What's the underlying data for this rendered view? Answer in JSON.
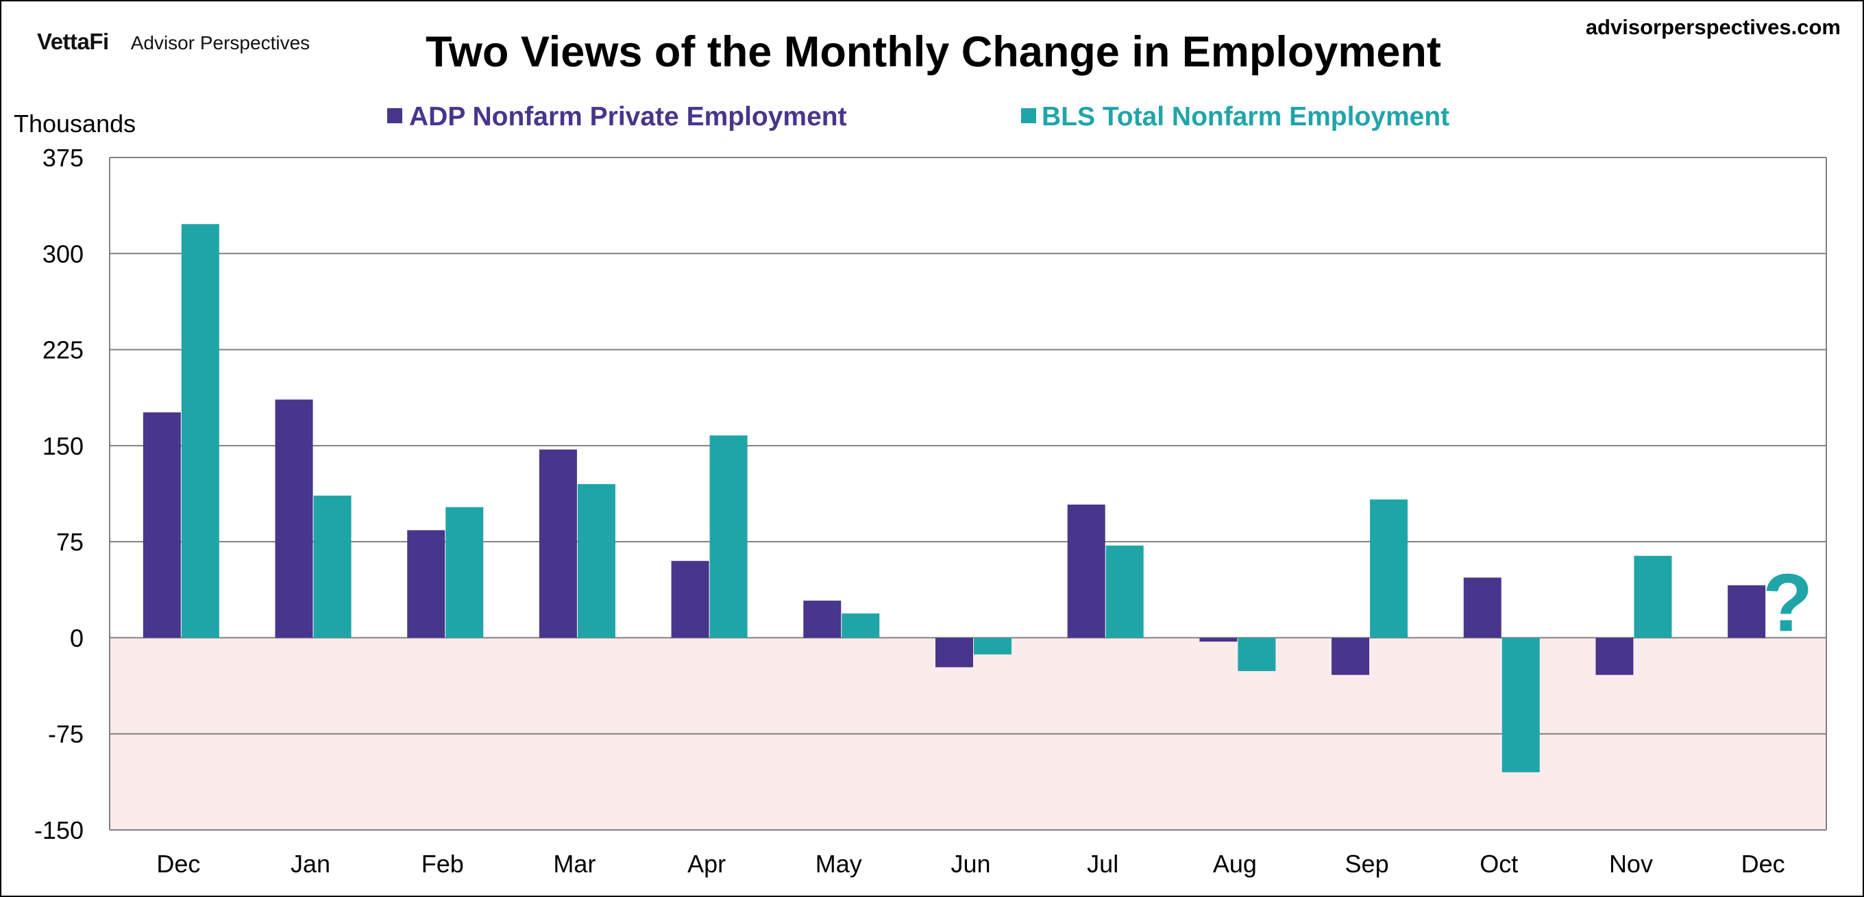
{
  "brand": {
    "logo": "VettaFi",
    "name": "Advisor Perspectives"
  },
  "site_url": "advisorperspectives.com",
  "colors": {
    "adp": "#48358C",
    "bls": "#1FA5A8",
    "negative_zone": "#FBECEC",
    "grid": "#808080"
  },
  "chart_data": {
    "type": "bar",
    "title": "Two Views of the Monthly Change in Employment",
    "ylabel": "Thousands",
    "xlabel": "",
    "ylim": [
      -150,
      375
    ],
    "yticks": [
      -150,
      -75,
      0,
      75,
      150,
      225,
      300,
      375
    ],
    "grid": true,
    "legend_position": "top",
    "categories": [
      "Dec",
      "Jan",
      "Feb",
      "Mar",
      "Apr",
      "May",
      "Jun",
      "Jul",
      "Aug",
      "Sep",
      "Oct",
      "Nov",
      "Dec"
    ],
    "series": [
      {
        "name": "ADP Nonfarm Private Employment",
        "color": "#48358C",
        "values": [
          176,
          186,
          84,
          147,
          60,
          29,
          -23,
          104,
          -3,
          -29,
          47,
          -29,
          41
        ]
      },
      {
        "name": "BLS Total Nonfarm Employment",
        "color": "#1FA5A8",
        "values": [
          323,
          111,
          102,
          120,
          158,
          19,
          -13,
          72,
          -26,
          108,
          -105,
          64,
          null
        ]
      }
    ],
    "annotations": [
      {
        "text": "?",
        "category_index": 12,
        "series": "BLS Total Nonfarm Employment"
      }
    ]
  }
}
